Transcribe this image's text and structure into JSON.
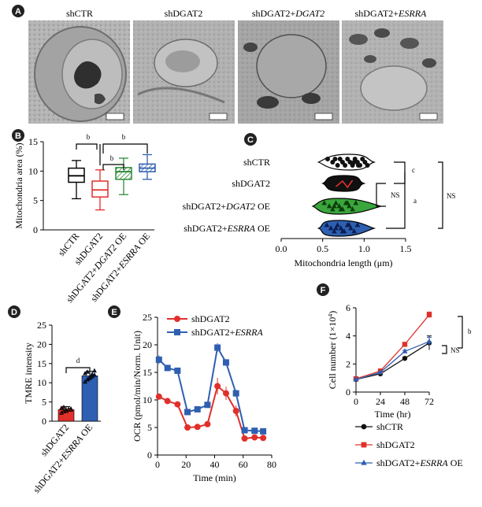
{
  "panels": {
    "A": {
      "letter": "A",
      "images": [
        {
          "label": "shCTR"
        },
        {
          "label": "shDGAT2"
        },
        {
          "label_parts": [
            "shDGAT2+",
            "DGAT2"
          ]
        },
        {
          "label_parts": [
            "shDGAT2+",
            "ESRRA"
          ]
        }
      ]
    },
    "B": {
      "letter": "B",
      "sig": [
        "b",
        "b",
        "b"
      ]
    },
    "C": {
      "letter": "C",
      "sig": [
        "c",
        "NS",
        "a",
        "NS"
      ]
    },
    "D": {
      "letter": "D",
      "sig": [
        "d"
      ]
    },
    "E": {
      "letter": "E"
    },
    "F": {
      "letter": "F",
      "sig": [
        "NS",
        "b"
      ]
    }
  },
  "chart_data": [
    {
      "panel": "B",
      "type": "box",
      "ylabel": "Mitochondria area (%)",
      "ylim": [
        0,
        15
      ],
      "yticks": [
        0,
        5,
        10,
        15
      ],
      "categories": [
        {
          "parts": [
            {
              "t": "shCTR"
            }
          ]
        },
        {
          "parts": [
            {
              "t": "shDGAT2"
            }
          ]
        },
        {
          "parts": [
            {
              "t": "shDGAT2+"
            },
            {
              "t": "DGAT2",
              "i": true
            },
            {
              "t": " OE"
            }
          ]
        },
        {
          "parts": [
            {
              "t": "shDGAT2+"
            },
            {
              "t": "ESRRA",
              "i": true
            },
            {
              "t": " OE"
            }
          ]
        }
      ],
      "boxes": [
        {
          "min": 5.3,
          "q1": 8.1,
          "median": 9.2,
          "q3": 10.5,
          "max": 11.8,
          "color": "#000000",
          "fill": "none"
        },
        {
          "min": 3.4,
          "q1": 5.6,
          "median": 6.8,
          "q3": 8.3,
          "max": 10.2,
          "color": "#e0302b",
          "fill": "none"
        },
        {
          "min": 6.0,
          "q1": 8.6,
          "median": 9.9,
          "q3": 10.6,
          "max": 12.2,
          "color": "#2e8b3a",
          "fill": "hatch"
        },
        {
          "min": 8.6,
          "q1": 9.9,
          "median": 10.5,
          "q3": 11.2,
          "max": 12.8,
          "color": "#2f5fb0",
          "fill": "hatch"
        }
      ]
    },
    {
      "panel": "C",
      "type": "violin",
      "xlabel": "Mitochondria length (μm)",
      "xlim": [
        0.0,
        1.5
      ],
      "xticks": [
        0.0,
        0.5,
        1.0,
        1.5
      ],
      "categories": [
        {
          "parts": [
            {
              "t": "shCTR"
            }
          ]
        },
        {
          "parts": [
            {
              "t": "shDGAT2"
            }
          ]
        },
        {
          "parts": [
            {
              "t": "shDGAT2+"
            },
            {
              "t": "DGAT2",
              "i": true
            },
            {
              "t": " OE"
            }
          ]
        },
        {
          "parts": [
            {
              "t": "shDGAT2+"
            },
            {
              "t": "ESRRA",
              "i": true
            },
            {
              "t": " OE"
            }
          ]
        }
      ],
      "groups": [
        {
          "fill": "#ffffff",
          "marker": "circle",
          "range": [
            0.45,
            1.12
          ],
          "median": 0.82,
          "points": [
            0.56,
            0.62,
            0.68,
            0.71,
            0.74,
            0.77,
            0.8,
            0.83,
            0.86,
            0.89,
            0.92,
            0.95,
            0.98,
            1.01,
            1.04,
            0.65,
            0.88,
            0.93
          ]
        },
        {
          "fill": "#111111",
          "marker": "circle",
          "range": [
            0.5,
            1.0
          ],
          "median": 0.76,
          "points": [
            0.58,
            0.62,
            0.66,
            0.7,
            0.73,
            0.75,
            0.77,
            0.79,
            0.81,
            0.84,
            0.87,
            0.9,
            0.68,
            0.72,
            0.78
          ]
        },
        {
          "fill": "#3aa63c",
          "marker": "triangle",
          "range": [
            0.38,
            1.2
          ],
          "median": 0.7,
          "points": [
            0.52,
            0.58,
            0.62,
            0.66,
            0.7,
            0.74,
            0.78,
            0.82,
            0.86,
            0.9,
            0.64,
            0.72,
            0.8
          ]
        },
        {
          "fill": "#2f5fb0",
          "marker": "triangle",
          "range": [
            0.45,
            1.12
          ],
          "median": 0.7,
          "points": [
            0.55,
            0.6,
            0.64,
            0.68,
            0.72,
            0.76,
            0.8,
            0.84,
            0.88,
            0.92,
            0.66,
            0.74,
            0.82
          ]
        }
      ]
    },
    {
      "panel": "D",
      "type": "bar",
      "ylabel": "TMRE intensity",
      "ylim": [
        0,
        25
      ],
      "yticks": [
        0,
        5,
        10,
        15,
        20,
        25
      ],
      "categories": [
        {
          "parts": [
            {
              "t": "shDGAT2"
            }
          ]
        },
        {
          "parts": [
            {
              "t": "shDGAT2+"
            },
            {
              "t": "ESRRA",
              "i": true
            },
            {
              "t": " OE"
            }
          ]
        }
      ],
      "values": [
        3.0,
        11.8
      ],
      "errors": [
        0.8,
        1.2
      ],
      "colors": [
        "#e0302b",
        "#2f5fb0"
      ],
      "points": [
        [
          2.1,
          2.5,
          2.8,
          3.0,
          3.2,
          3.4,
          3.6,
          2.6,
          3.1,
          2.9
        ],
        [
          10.2,
          10.8,
          11.2,
          11.6,
          12.0,
          12.4,
          12.8,
          11.4,
          12.2,
          13.1
        ]
      ]
    },
    {
      "panel": "E",
      "type": "line",
      "xlabel": "Time (min)",
      "ylabel": "OCR (pmol/min/Norm. Unit)",
      "xlim": [
        0,
        80
      ],
      "ylim": [
        0,
        25
      ],
      "xticks": [
        0,
        20,
        40,
        60,
        80
      ],
      "yticks": [
        0,
        5,
        10,
        15,
        20,
        25
      ],
      "x": [
        1,
        7,
        14,
        21,
        28,
        35,
        42,
        48,
        55,
        61,
        68,
        74
      ],
      "series": [
        {
          "name_parts": [
            {
              "t": "shDGAT2"
            }
          ],
          "color": "#e0302b",
          "marker": "circle",
          "values": [
            10.6,
            9.8,
            9.2,
            5.0,
            5.1,
            5.6,
            12.5,
            11.2,
            8.0,
            3.0,
            3.2,
            3.1
          ],
          "errors": [
            0.5,
            0.5,
            0.5,
            0.4,
            0.4,
            0.4,
            1.5,
            1.2,
            1.0,
            0.4,
            0.4,
            0.4
          ]
        },
        {
          "name_parts": [
            {
              "t": "shDGAT2+"
            },
            {
              "t": "ESRRA",
              "i": true
            }
          ],
          "color": "#2f5fb0",
          "marker": "square",
          "values": [
            17.3,
            15.8,
            15.3,
            7.8,
            8.3,
            9.1,
            19.5,
            16.8,
            11.2,
            4.5,
            4.4,
            4.3
          ],
          "errors": [
            0.8,
            0.5,
            0.5,
            0.5,
            0.5,
            0.5,
            0.8,
            0.6,
            0.6,
            0.4,
            0.4,
            0.4
          ]
        }
      ]
    },
    {
      "panel": "F",
      "type": "line",
      "xlabel": "Time (hr)",
      "ylabel_parts": [
        {
          "t": "Cell number (1×10"
        },
        {
          "t": "4",
          "sup": true
        },
        {
          "t": ")"
        }
      ],
      "xlim": [
        0,
        72
      ],
      "ylim": [
        0,
        6
      ],
      "xticks": [
        0,
        24,
        48,
        72
      ],
      "yticks": [
        0,
        2,
        4,
        6
      ],
      "x": [
        0,
        24,
        48,
        72
      ],
      "series": [
        {
          "name_parts": [
            {
              "t": "shCTR"
            }
          ],
          "color": "#111111",
          "marker": "circle",
          "values": [
            0.9,
            1.3,
            2.4,
            3.5
          ],
          "errors": [
            0.05,
            0.05,
            0.08,
            0.5
          ]
        },
        {
          "name_parts": [
            {
              "t": "shDGAT2"
            }
          ],
          "color": "#e0302b",
          "marker": "square",
          "values": [
            0.95,
            1.5,
            3.4,
            5.5
          ],
          "errors": [
            0.05,
            0.06,
            0.08,
            0.2
          ]
        },
        {
          "name_parts": [
            {
              "t": "shDGAT2+"
            },
            {
              "t": "ESRRA",
              "i": true
            },
            {
              "t": " OE"
            }
          ],
          "color": "#2f5fb0",
          "marker": "triangle",
          "values": [
            0.9,
            1.4,
            2.9,
            3.6
          ],
          "errors": [
            0.05,
            0.05,
            0.08,
            0.3
          ]
        }
      ]
    }
  ]
}
